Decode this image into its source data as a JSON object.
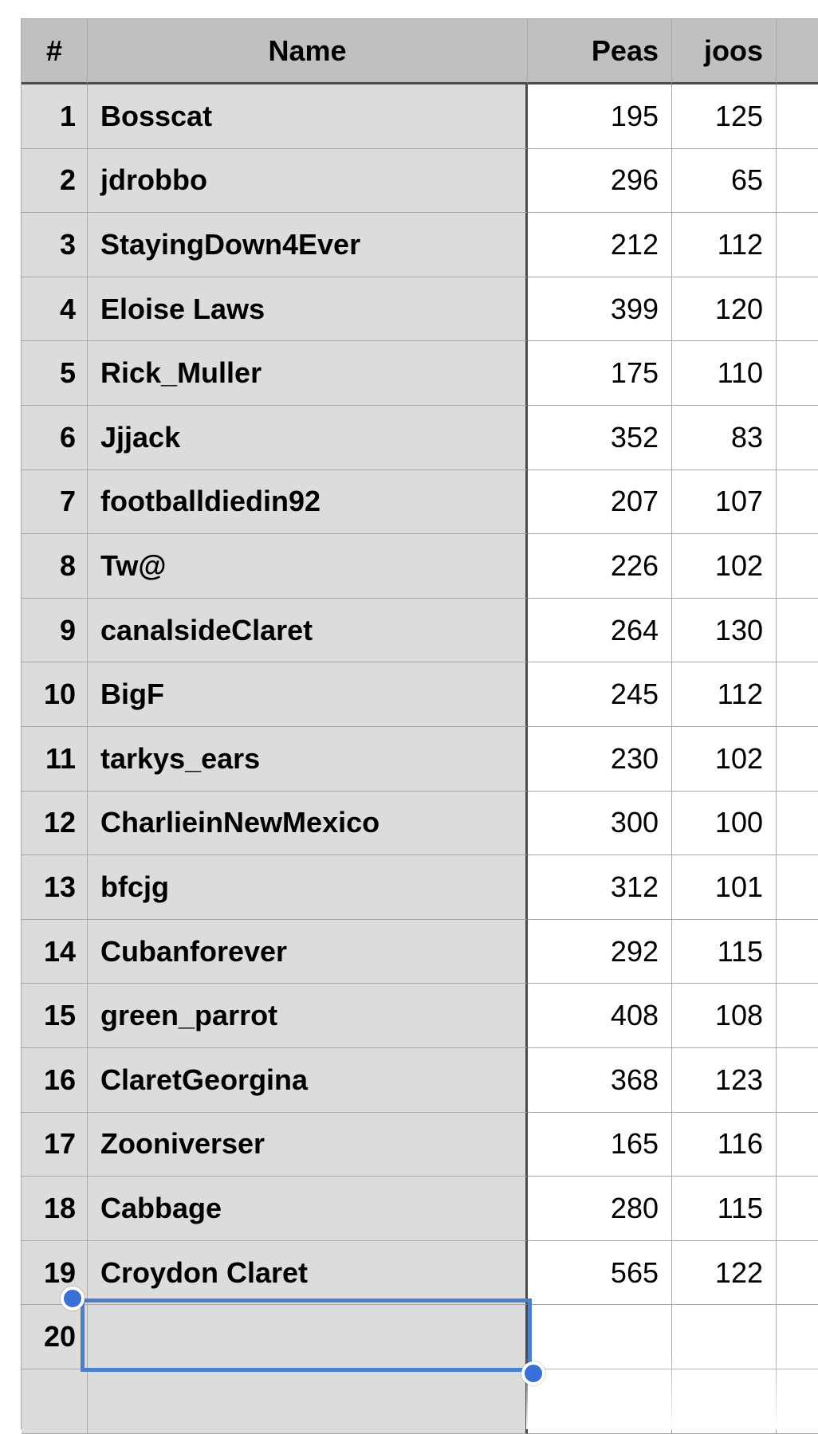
{
  "table": {
    "headers": [
      "#",
      "Name",
      "Peas",
      "joos",
      ""
    ],
    "rows": [
      {
        "num": "1",
        "name": "Bosscat",
        "peas": "195",
        "joos": "125"
      },
      {
        "num": "2",
        "name": "jdrobbo",
        "peas": "296",
        "joos": "65"
      },
      {
        "num": "3",
        "name": "StayingDown4Ever",
        "peas": "212",
        "joos": "112"
      },
      {
        "num": "4",
        "name": "Eloise Laws",
        "peas": "399",
        "joos": "120"
      },
      {
        "num": "5",
        "name": "Rick_Muller",
        "peas": "175",
        "joos": "110"
      },
      {
        "num": "6",
        "name": "Jjjack",
        "peas": "352",
        "joos": "83"
      },
      {
        "num": "7",
        "name": "footballdiedin92",
        "peas": "207",
        "joos": "107"
      },
      {
        "num": "8",
        "name": "Tw@",
        "peas": "226",
        "joos": "102"
      },
      {
        "num": "9",
        "name": "canalsideClaret",
        "peas": "264",
        "joos": "130"
      },
      {
        "num": "10",
        "name": "BigF",
        "peas": "245",
        "joos": "112"
      },
      {
        "num": "11",
        "name": "tarkys_ears",
        "peas": "230",
        "joos": "102"
      },
      {
        "num": "12",
        "name": "CharlieinNewMexico",
        "peas": "300",
        "joos": "100"
      },
      {
        "num": "13",
        "name": "bfcjg",
        "peas": "312",
        "joos": "101"
      },
      {
        "num": "14",
        "name": "Cubanforever",
        "peas": "292",
        "joos": "115"
      },
      {
        "num": "15",
        "name": "green_parrot",
        "peas": "408",
        "joos": "108"
      },
      {
        "num": "16",
        "name": "ClaretGeorgina",
        "peas": "368",
        "joos": "123"
      },
      {
        "num": "17",
        "name": "Zooniverser",
        "peas": "165",
        "joos": "116"
      },
      {
        "num": "18",
        "name": "Cabbage",
        "peas": "280",
        "joos": "115"
      },
      {
        "num": "19",
        "name": "Croydon Claret",
        "peas": "565",
        "joos": "122"
      },
      {
        "num": "20",
        "name": "",
        "peas": "",
        "joos": ""
      },
      {
        "num": "",
        "name": "",
        "peas": "",
        "joos": ""
      }
    ],
    "selection_color": "#4a7fcf"
  }
}
